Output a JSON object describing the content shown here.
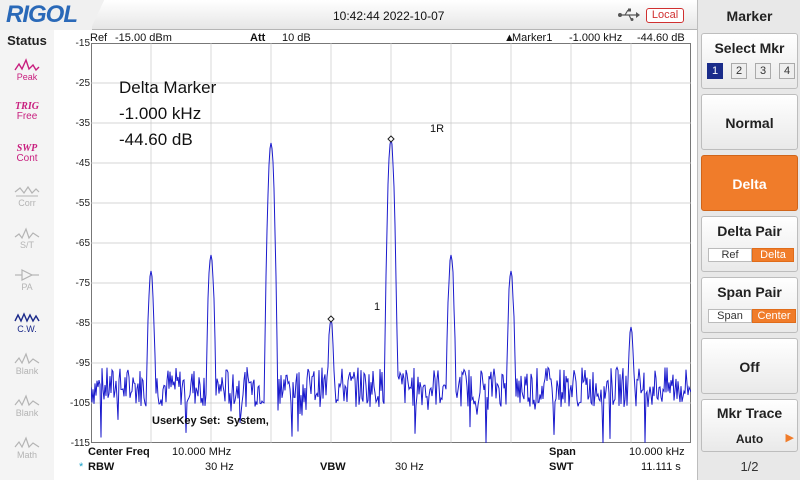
{
  "header": {
    "logo": "RIGOL",
    "datetime": "10:42:44 2022-10-07",
    "remote_status": "Local",
    "usb_icon": "usb-icon"
  },
  "status_panel": {
    "title": "Status",
    "items": [
      {
        "label": "Peak",
        "icon": "peak-icon",
        "state": "on"
      },
      {
        "label_top": "TRIG",
        "label": "Free",
        "icon": "trig-text",
        "state": "on"
      },
      {
        "label_top": "SWP",
        "label": "Cont",
        "icon": "swp-text",
        "state": "on"
      },
      {
        "label": "Corr",
        "icon": "corr-icon",
        "state": "off"
      },
      {
        "label": "S/T",
        "icon": "st-icon",
        "state": "off"
      },
      {
        "label": "PA",
        "icon": "pa-icon",
        "state": "off"
      },
      {
        "label": "C.W.",
        "icon": "cw-icon",
        "state": "cw"
      },
      {
        "label": "Blank",
        "icon": "blank-icon",
        "state": "off"
      },
      {
        "label": "Blank",
        "icon": "blank-icon",
        "state": "off"
      },
      {
        "label": "Math",
        "icon": "math-icon",
        "state": "off"
      }
    ]
  },
  "graph": {
    "ref_label": "Ref",
    "ref_value": "-15.00 dBm",
    "att_label": "Att",
    "att_value": "10 dB",
    "marker_label": "Marker1",
    "marker_freq": "-1.000 kHz",
    "marker_amp": "-44.60 dB",
    "delta_title": "Delta Marker",
    "delta_freq": "-1.000 kHz",
    "delta_amp": "-44.60 dB",
    "userkey": "UserKey Set:",
    "userkey_value": "System,",
    "y_ticks": [
      "-15",
      "-25",
      "-35",
      "-45",
      "-55",
      "-65",
      "-75",
      "-85",
      "-95",
      "-105",
      "-115"
    ],
    "marker_tags": {
      "ref": "1R",
      "delta": "1"
    },
    "center_label": "Center Freq",
    "center_value": "10.000 MHz",
    "span_label": "Span",
    "span_value": "10.000 kHz",
    "rbw_label": "RBW",
    "rbw_value": "30 Hz",
    "vbw_label": "VBW",
    "vbw_value": "30 Hz",
    "swt_label": "SWT",
    "swt_value": "11.111 s",
    "trace_color": "#1a1acc"
  },
  "chart_data": {
    "type": "line",
    "xlabel": "",
    "ylabel": "",
    "ylim": [
      -115,
      -15
    ],
    "xlim": [
      9.995,
      10.005
    ],
    "x_unit": "MHz",
    "y_unit": "dBm",
    "grid": true,
    "peaks": [
      {
        "x": 9.996,
        "y": -72
      },
      {
        "x": 9.997,
        "y": -68
      },
      {
        "x": 9.998,
        "y": -40
      },
      {
        "x": 9.999,
        "y": -84
      },
      {
        "x": 10.0,
        "y": -39
      },
      {
        "x": 10.001,
        "y": -68
      },
      {
        "x": 10.002,
        "y": -72
      },
      {
        "x": 10.004,
        "y": -86
      }
    ],
    "noise_floor": -101
  },
  "menu": {
    "title": "Marker",
    "select_label": "Select Mkr",
    "select_options": [
      "1",
      "2",
      "3",
      "4"
    ],
    "selected": "1",
    "normal_label": "Normal",
    "delta_label": "Delta",
    "delta_pair_label": "Delta Pair",
    "delta_pair_options": [
      "Ref",
      "Delta"
    ],
    "span_pair_label": "Span Pair",
    "span_pair_options": [
      "Span",
      "Center"
    ],
    "off_label": "Off",
    "mkr_trace_label": "Mkr Trace",
    "mkr_trace_value": "Auto",
    "page": "1/2",
    "active_color": "#f07c2a"
  }
}
